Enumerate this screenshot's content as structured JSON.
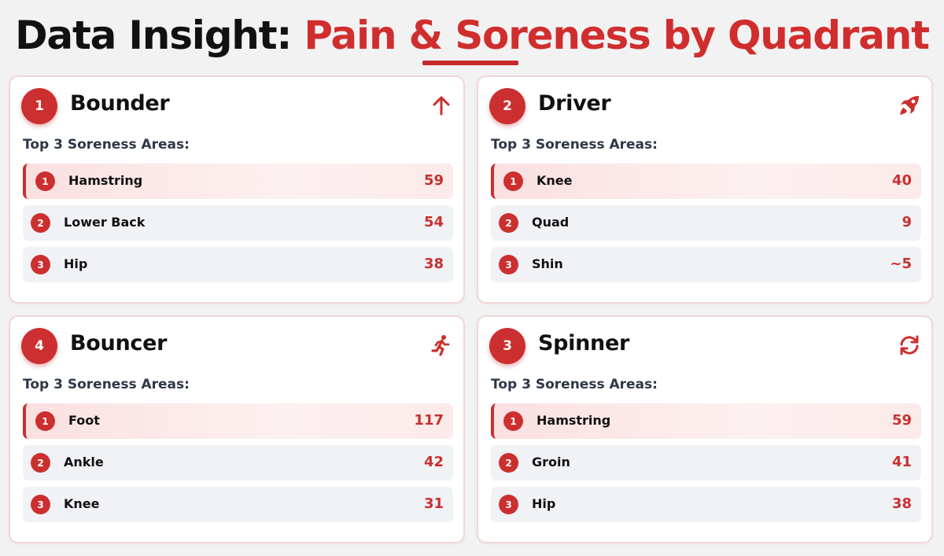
{
  "header": {
    "title_prefix": "Data Insight:",
    "title_highlight": "Pain & Soreness by Quadrant"
  },
  "colors": {
    "accent": "#cc2f2f",
    "text_dark": "#111111",
    "row_bg": "#f1f2f5",
    "card_border": "#f2d6d6"
  },
  "quadrants": [
    {
      "number": "1",
      "name": "Bounder",
      "icon": "arrow-up-icon",
      "subheading": "Top 3 Soreness Areas:",
      "areas": [
        {
          "rank": "1",
          "label": "Hamstring",
          "count": "59"
        },
        {
          "rank": "2",
          "label": "Lower Back",
          "count": "54"
        },
        {
          "rank": "3",
          "label": "Hip",
          "count": "38"
        }
      ]
    },
    {
      "number": "2",
      "name": "Driver",
      "icon": "rocket-icon",
      "subheading": "Top 3 Soreness Areas:",
      "areas": [
        {
          "rank": "1",
          "label": "Knee",
          "count": "40"
        },
        {
          "rank": "2",
          "label": "Quad",
          "count": "9"
        },
        {
          "rank": "3",
          "label": "Shin",
          "count": "~5"
        }
      ]
    },
    {
      "number": "4",
      "name": "Bouncer",
      "icon": "running-person-icon",
      "subheading": "Top 3 Soreness Areas:",
      "areas": [
        {
          "rank": "1",
          "label": "Foot",
          "count": "117"
        },
        {
          "rank": "2",
          "label": "Ankle",
          "count": "42"
        },
        {
          "rank": "3",
          "label": "Knee",
          "count": "31"
        }
      ]
    },
    {
      "number": "3",
      "name": "Spinner",
      "icon": "rotate-arrows-icon",
      "subheading": "Top 3 Soreness Areas:",
      "areas": [
        {
          "rank": "1",
          "label": "Hamstring",
          "count": "59"
        },
        {
          "rank": "2",
          "label": "Groin",
          "count": "41"
        },
        {
          "rank": "3",
          "label": "Hip",
          "count": "38"
        }
      ]
    }
  ]
}
